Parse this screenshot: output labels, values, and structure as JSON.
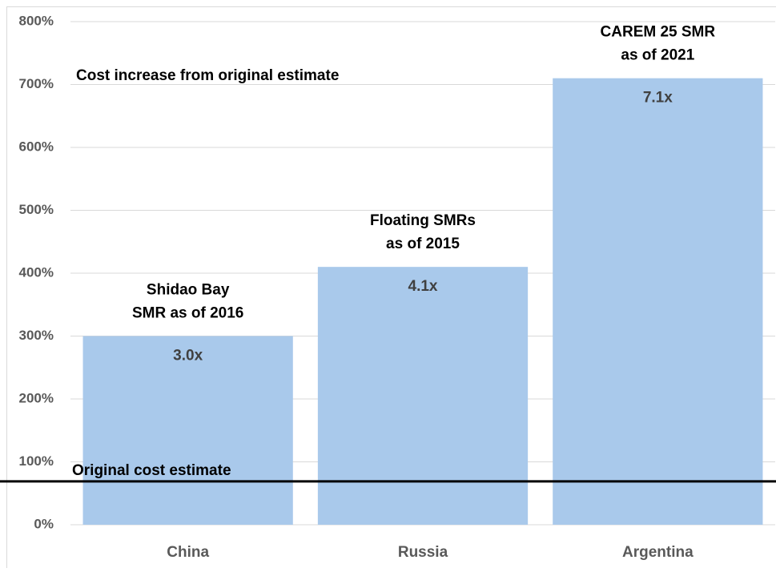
{
  "chart_data": {
    "type": "bar",
    "subtitle": "Cost increase from original estimate",
    "categories": [
      "China",
      "Russia",
      "Argentina"
    ],
    "values": [
      300,
      410,
      710
    ],
    "value_labels": [
      "3.0x",
      "4.1x",
      "7.1x"
    ],
    "annotations": [
      [
        "Shidao Bay",
        "SMR as of 2016"
      ],
      [
        "Floating SMRs",
        "as of 2015"
      ],
      [
        "CAREM 25 SMR",
        "as of 2021"
      ]
    ],
    "reference_line": {
      "label": "Original cost estimate",
      "value": 69
    },
    "color": "#a9c9eb",
    "ylim": [
      0,
      800
    ],
    "yticks": [
      {
        "value": 0,
        "label": "0%"
      },
      {
        "value": 100,
        "label": "100%"
      },
      {
        "value": 200,
        "label": "200%"
      },
      {
        "value": 300,
        "label": "300%"
      },
      {
        "value": 400,
        "label": "400%"
      },
      {
        "value": 500,
        "label": "500%"
      },
      {
        "value": 600,
        "label": "600%"
      },
      {
        "value": 700,
        "label": "700%"
      },
      {
        "value": 800,
        "label": "800%"
      }
    ],
    "grid": true
  }
}
